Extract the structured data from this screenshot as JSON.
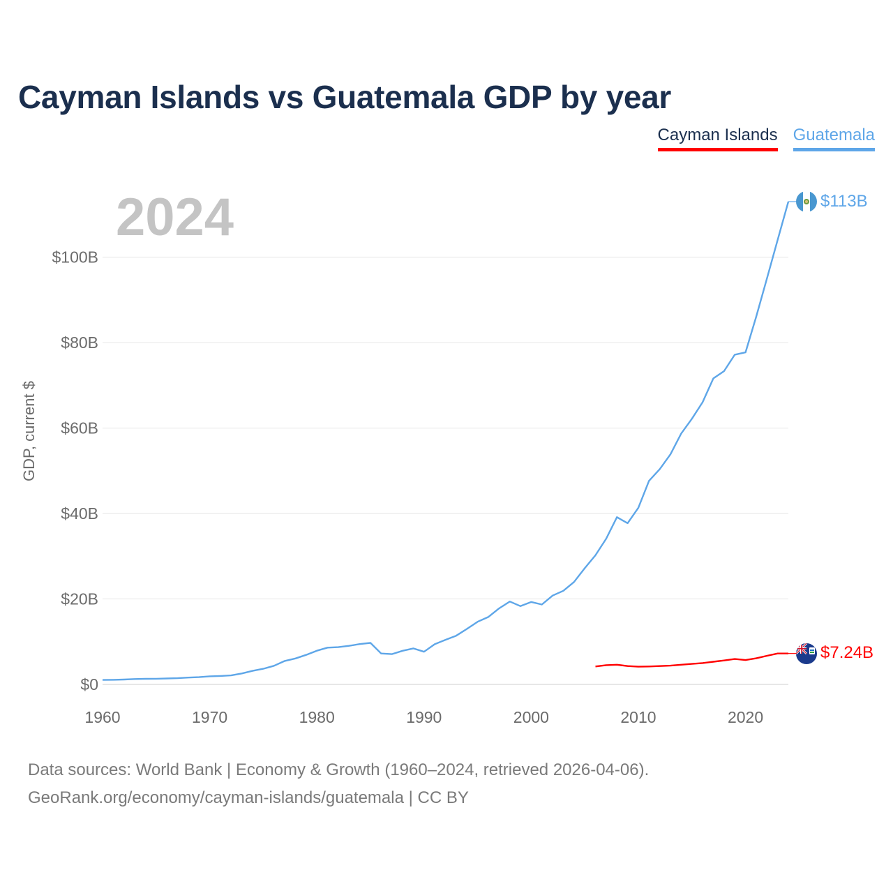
{
  "chart_data": {
    "type": "line",
    "title": "Cayman Islands vs Guatemala GDP by year",
    "ylabel": "GDP, current $",
    "xlabel": "",
    "xlim": [
      1960,
      2024
    ],
    "ylim": [
      0,
      113
    ],
    "x_ticks": [
      1960,
      1970,
      1980,
      1990,
      2000,
      2010,
      2020
    ],
    "x_tick_labels": [
      "1960",
      "1970",
      "1980",
      "1990",
      "2000",
      "2010",
      "2020"
    ],
    "y_ticks": [
      0,
      20,
      40,
      60,
      80,
      100
    ],
    "y_tick_labels": [
      "$0",
      "$20B",
      "$40B",
      "$60B",
      "$80B",
      "$100B"
    ],
    "year_label": "2024",
    "series": [
      {
        "name": "Guatemala",
        "color": "#5ea6e8",
        "end_label": "$113B",
        "x": [
          1960,
          1961,
          1962,
          1963,
          1964,
          1965,
          1966,
          1967,
          1968,
          1969,
          1970,
          1971,
          1972,
          1973,
          1974,
          1975,
          1976,
          1977,
          1978,
          1979,
          1980,
          1981,
          1982,
          1983,
          1984,
          1985,
          1986,
          1987,
          1988,
          1989,
          1990,
          1991,
          1992,
          1993,
          1994,
          1995,
          1996,
          1997,
          1998,
          1999,
          2000,
          2001,
          2002,
          2003,
          2004,
          2005,
          2006,
          2007,
          2008,
          2009,
          2010,
          2011,
          2012,
          2013,
          2014,
          2015,
          2016,
          2017,
          2018,
          2019,
          2020,
          2021,
          2022,
          2023,
          2024
        ],
        "values": [
          1.04,
          1.08,
          1.14,
          1.25,
          1.3,
          1.33,
          1.39,
          1.45,
          1.6,
          1.7,
          1.9,
          1.98,
          2.1,
          2.57,
          3.16,
          3.65,
          4.36,
          5.48,
          6.07,
          6.9,
          7.88,
          8.61,
          8.72,
          9.03,
          9.44,
          9.72,
          7.23,
          7.08,
          7.87,
          8.42,
          7.65,
          9.41,
          10.44,
          11.4,
          12.98,
          14.66,
          15.78,
          17.79,
          19.4,
          18.32,
          19.29,
          18.7,
          20.78,
          21.92,
          23.97,
          27.21,
          30.23,
          34.11,
          39.14,
          37.73,
          41.34,
          47.65,
          50.39,
          53.85,
          58.72,
          62.19,
          66.05,
          71.62,
          73.32,
          77.17,
          77.71,
          86.05,
          95.0,
          104.0,
          113.0
        ]
      },
      {
        "name": "Cayman Islands",
        "color": "#ff0000",
        "end_label": "$7.24B",
        "x": [
          2006,
          2007,
          2008,
          2009,
          2010,
          2011,
          2012,
          2013,
          2014,
          2015,
          2016,
          2017,
          2018,
          2019,
          2020,
          2021,
          2022,
          2023,
          2024
        ],
        "values": [
          4.2,
          4.5,
          4.6,
          4.3,
          4.15,
          4.2,
          4.3,
          4.4,
          4.6,
          4.8,
          5.0,
          5.3,
          5.6,
          5.95,
          5.7,
          6.1,
          6.7,
          7.24,
          7.24
        ]
      }
    ]
  },
  "legend": {
    "items": [
      "Cayman Islands",
      "Guatemala"
    ]
  },
  "source": {
    "line1": "Data sources: World Bank | Economy & Growth (1960–2024, retrieved 2026-04-06).",
    "line2": "GeoRank.org/economy/cayman-islands/guatemala | CC BY"
  }
}
